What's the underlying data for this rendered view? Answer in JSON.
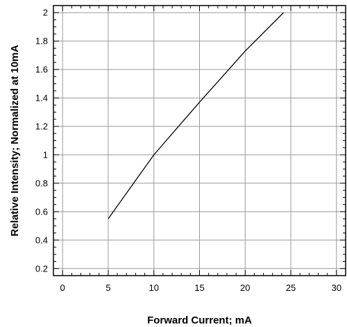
{
  "chart_data": {
    "type": "line",
    "title": "",
    "xlabel": "Forward Current; mA",
    "ylabel": "Relative Intensity; Normalized at 10mA",
    "xlim": [
      -1,
      31
    ],
    "ylim": [
      0.15,
      2.05
    ],
    "x_ticks": [
      0,
      5,
      10,
      15,
      20,
      25,
      30
    ],
    "y_ticks": [
      0.2,
      0.4,
      0.6,
      0.8,
      1,
      1.2,
      1.4,
      1.6,
      1.8,
      2
    ],
    "x_tick_labels": [
      "0",
      "5",
      "10",
      "15",
      "20",
      "25",
      "30"
    ],
    "y_tick_labels": [
      "0.2",
      "0.4",
      "0.6",
      "0.8",
      "1",
      "1.2",
      "1.4",
      "1.6",
      "1.8",
      "2"
    ],
    "grid": true,
    "legend": "none",
    "series": [
      {
        "color": "#000000",
        "x": [
          5,
          10,
          15,
          20,
          24.2
        ],
        "y": [
          0.55,
          1.0,
          1.37,
          1.73,
          2.0
        ]
      }
    ]
  }
}
